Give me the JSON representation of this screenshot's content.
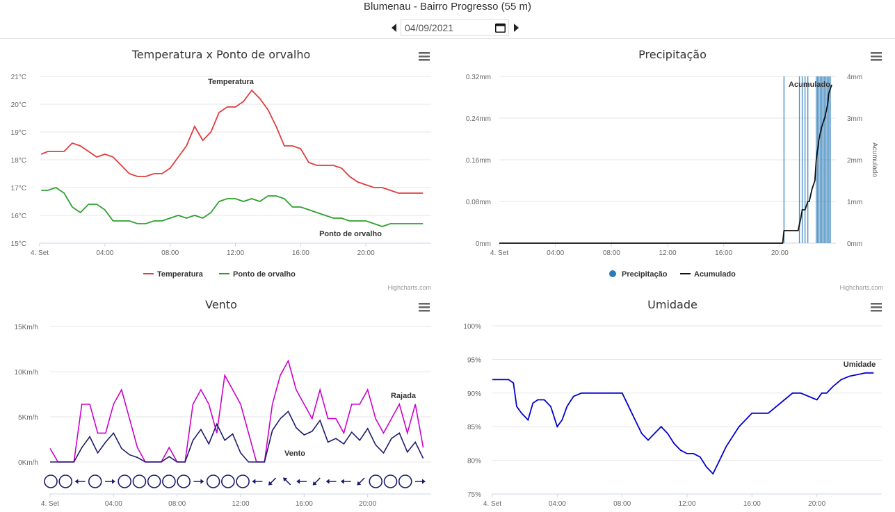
{
  "header": {
    "title": "Blumenau - Bairro Progresso (55 m)",
    "date": "04/09/2021"
  },
  "credits": "Highcharts.com",
  "chart_data": [
    {
      "id": "temp",
      "type": "line",
      "title": "Temperatura x Ponto de orvalho",
      "x_ticks": [
        "4. Set",
        "04:00",
        "08:00",
        "12:00",
        "16:00",
        "20:00"
      ],
      "y_ticks": [
        "15°C",
        "16°C",
        "17°C",
        "18°C",
        "19°C",
        "20°C",
        "21°C"
      ],
      "ylim": [
        15,
        21
      ],
      "series": [
        {
          "name": "Temperatura",
          "color": "#e03c3c",
          "x": [
            0.1,
            0.5,
            1.0,
            1.5,
            2.0,
            2.5,
            3.0,
            3.5,
            4.0,
            4.5,
            5.0,
            5.5,
            6.0,
            6.5,
            7.0,
            7.5,
            8.0,
            8.5,
            9.0,
            9.5,
            10.0,
            10.5,
            11.0,
            11.5,
            12.0,
            12.5,
            13.0,
            13.5,
            14.0,
            14.5,
            15.0,
            15.5,
            16.0,
            16.5,
            17.0,
            17.5,
            18.0,
            18.5,
            19.0,
            19.5,
            20.0,
            20.5,
            21.0,
            21.5,
            22.0,
            22.5,
            23.0,
            23.5
          ],
          "values": [
            18.2,
            18.3,
            18.3,
            18.3,
            18.6,
            18.5,
            18.3,
            18.1,
            18.2,
            18.1,
            17.8,
            17.5,
            17.4,
            17.4,
            17.5,
            17.5,
            17.7,
            18.1,
            18.5,
            19.2,
            18.7,
            19.0,
            19.7,
            19.9,
            19.9,
            20.1,
            20.5,
            20.2,
            19.8,
            19.2,
            18.5,
            18.5,
            18.4,
            17.9,
            17.8,
            17.8,
            17.8,
            17.7,
            17.4,
            17.2,
            17.1,
            17.0,
            17.0,
            16.9,
            16.8,
            16.8,
            16.8,
            16.8
          ]
        },
        {
          "name": "Ponto de orvalho",
          "color": "#2ca02c",
          "x": [
            0.1,
            0.5,
            1.0,
            1.5,
            2.0,
            2.5,
            3.0,
            3.5,
            4.0,
            4.5,
            5.0,
            5.5,
            6.0,
            6.5,
            7.0,
            7.5,
            8.0,
            8.5,
            9.0,
            9.5,
            10.0,
            10.5,
            11.0,
            11.5,
            12.0,
            12.5,
            13.0,
            13.5,
            14.0,
            14.5,
            15.0,
            15.5,
            16.0,
            16.5,
            17.0,
            17.5,
            18.0,
            18.5,
            19.0,
            19.5,
            20.0,
            20.5,
            21.0,
            21.5,
            22.0,
            22.5,
            23.0,
            23.5
          ],
          "values": [
            16.9,
            16.9,
            17.0,
            16.8,
            16.3,
            16.1,
            16.4,
            16.4,
            16.2,
            15.8,
            15.8,
            15.8,
            15.7,
            15.7,
            15.8,
            15.8,
            15.9,
            16.0,
            15.9,
            16.0,
            15.9,
            16.1,
            16.5,
            16.6,
            16.6,
            16.5,
            16.6,
            16.5,
            16.7,
            16.7,
            16.6,
            16.3,
            16.3,
            16.2,
            16.1,
            16.0,
            15.9,
            15.9,
            15.8,
            15.8,
            15.8,
            15.7,
            15.6,
            15.7,
            15.7,
            15.7,
            15.7,
            15.7
          ]
        }
      ]
    },
    {
      "id": "precip",
      "type": "column-line",
      "title": "Precipitação",
      "x_ticks": [
        "4. Set",
        "04:00",
        "08:00",
        "12:00",
        "16:00",
        "20:00"
      ],
      "y_ticks_left": [
        "0mm",
        "0.08mm",
        "0.16mm",
        "0.24mm",
        "0.32mm"
      ],
      "y_ticks_right": [
        "0mm",
        "1mm",
        "2mm",
        "3mm",
        "4mm"
      ],
      "ylabel_right": "Acumulado",
      "ylim_left": [
        0,
        0.32
      ],
      "ylim_right": [
        0,
        4
      ],
      "series": [
        {
          "name": "Precipitação",
          "color": "#2b7bb9",
          "type": "column",
          "x": [
            20.3,
            21.4,
            21.6,
            21.8,
            22.0,
            22.6,
            22.7,
            22.8,
            22.9,
            23.0,
            23.1,
            23.2,
            23.3,
            23.4,
            23.5,
            23.6
          ],
          "values": [
            0.32,
            0.32,
            0.32,
            0.32,
            0.32,
            0.32,
            0.32,
            0.32,
            0.32,
            0.32,
            0.32,
            0.32,
            0.32,
            0.32,
            0.32,
            0.32
          ]
        },
        {
          "name": "Acumulado",
          "color": "#111111",
          "type": "line",
          "x": [
            0,
            20.2,
            20.3,
            21.3,
            21.5,
            21.6,
            21.8,
            22.0,
            22.1,
            22.3,
            22.5,
            22.6,
            22.8,
            23.0,
            23.2,
            23.4,
            23.5,
            23.7
          ],
          "values": [
            0,
            0,
            0.3,
            0.3,
            0.6,
            0.8,
            0.8,
            1.0,
            1.0,
            1.3,
            1.5,
            2.0,
            2.5,
            2.8,
            3.0,
            3.3,
            3.6,
            3.8
          ]
        }
      ]
    },
    {
      "id": "wind",
      "type": "line",
      "title": "Vento",
      "x_ticks": [
        "4. Set",
        "04:00",
        "08:00",
        "12:00",
        "16:00",
        "20:00"
      ],
      "y_ticks": [
        "0Km/h",
        "5Km/h",
        "10Km/h",
        "15Km/h"
      ],
      "ylim": [
        0,
        15
      ],
      "series": [
        {
          "name": "Rajada",
          "color": "#cc00cc",
          "x": [
            0,
            0.5,
            1.0,
            1.5,
            2.0,
            2.5,
            3.0,
            3.5,
            4.0,
            4.5,
            5.0,
            5.5,
            6.0,
            6.5,
            7.0,
            7.5,
            8.0,
            8.5,
            9.0,
            9.5,
            10.0,
            10.5,
            11.0,
            11.5,
            12.0,
            12.5,
            13.0,
            13.5,
            14.0,
            14.5,
            15.0,
            15.5,
            16.0,
            16.5,
            17.0,
            17.5,
            18.0,
            18.5,
            19.0,
            19.5,
            20.0,
            20.5,
            21.0,
            21.5,
            22.0,
            22.5,
            23.0,
            23.5
          ],
          "values": [
            1.5,
            0,
            0,
            0,
            6.4,
            6.4,
            3.2,
            3.2,
            6.4,
            8.0,
            4.8,
            1.6,
            0,
            0,
            0,
            1.6,
            0,
            0,
            6.4,
            8.0,
            6.4,
            3.2,
            9.6,
            8.0,
            6.4,
            3.2,
            0,
            0,
            6.4,
            9.6,
            11.2,
            8.0,
            6.4,
            4.8,
            8.0,
            4.8,
            4.8,
            3.2,
            6.4,
            6.4,
            8.0,
            4.8,
            3.2,
            4.8,
            6.4,
            3.2,
            6.4,
            1.6
          ]
        },
        {
          "name": "Vento",
          "color": "#1a1a6e",
          "x": [
            0,
            0.5,
            1.0,
            1.5,
            2.0,
            2.5,
            3.0,
            3.5,
            4.0,
            4.5,
            5.0,
            5.5,
            6.0,
            6.5,
            7.0,
            7.5,
            8.0,
            8.5,
            9.0,
            9.5,
            10.0,
            10.5,
            11.0,
            11.5,
            12.0,
            12.5,
            13.0,
            13.5,
            14.0,
            14.5,
            15.0,
            15.5,
            16.0,
            16.5,
            17.0,
            17.5,
            18.0,
            18.5,
            19.0,
            19.5,
            20.0,
            20.5,
            21.0,
            21.5,
            22.0,
            22.5,
            23.0,
            23.5
          ],
          "values": [
            0,
            0,
            0,
            0,
            1.6,
            2.8,
            1.0,
            2.2,
            3.2,
            1.5,
            0.8,
            0.5,
            0,
            0,
            0,
            0.6,
            0,
            0,
            2.4,
            3.6,
            2.0,
            4.2,
            2.4,
            3.1,
            1.0,
            0,
            0,
            0,
            3.5,
            4.8,
            5.6,
            3.8,
            3.0,
            3.4,
            4.6,
            2.2,
            2.6,
            2.0,
            3.3,
            2.4,
            3.7,
            1.9,
            1.0,
            2.6,
            3.2,
            1.1,
            2.2,
            0.4
          ]
        }
      ],
      "direction_markers": [
        "calm",
        "calm",
        "arrow-w",
        "calm",
        "arrow-e",
        "calm",
        "calm",
        "calm",
        "calm",
        "calm",
        "arrow-e",
        "calm",
        "calm",
        "calm",
        "arrow-w",
        "arrow-sw",
        "arrow-nw",
        "arrow-w",
        "arrow-sw",
        "arrow-w",
        "arrow-w",
        "arrow-sw",
        "calm",
        "calm",
        "calm",
        "arrow-e"
      ]
    },
    {
      "id": "humidity",
      "type": "line",
      "title": "Umidade",
      "x_ticks": [
        "4. Set",
        "04:00",
        "08:00",
        "12:00",
        "16:00",
        "20:00"
      ],
      "y_ticks": [
        "75%",
        "80%",
        "85%",
        "90%",
        "95%",
        "100%"
      ],
      "ylim": [
        75,
        100
      ],
      "series": [
        {
          "name": "Umidade",
          "color": "#0000cc",
          "x": [
            0,
            1.0,
            1.3,
            1.5,
            1.8,
            2.2,
            2.5,
            2.8,
            3.2,
            3.6,
            4.0,
            4.3,
            4.6,
            5.0,
            5.5,
            6.0,
            7.0,
            8.0,
            8.4,
            8.8,
            9.2,
            9.6,
            10.0,
            10.4,
            10.8,
            11.2,
            11.6,
            12.0,
            12.4,
            12.8,
            13.2,
            13.6,
            14.0,
            14.4,
            14.8,
            15.2,
            15.6,
            16.0,
            17.0,
            18.0,
            18.5,
            19.0,
            20.0,
            20.3,
            20.6,
            21.0,
            21.5,
            22.0,
            23.0,
            23.5
          ],
          "values": [
            92,
            92,
            91.5,
            88,
            87,
            86,
            88.5,
            89,
            89,
            88,
            85,
            86,
            88,
            89.5,
            90,
            90,
            90,
            90,
            88,
            86,
            84,
            83,
            84,
            85,
            84,
            82.5,
            81.5,
            81,
            81,
            80.5,
            79,
            78,
            80,
            82,
            83.5,
            85,
            86,
            87,
            87,
            89,
            90,
            90,
            89,
            90,
            90,
            91,
            92,
            92.5,
            93,
            93
          ]
        }
      ]
    }
  ]
}
